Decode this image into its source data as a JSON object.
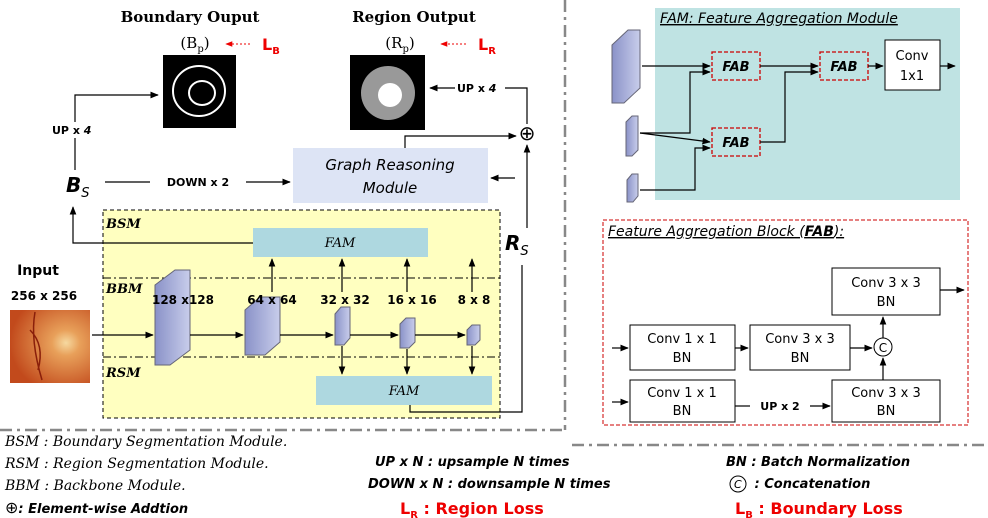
{
  "main": {
    "boundary_output": {
      "title": "Boundary Ouput",
      "label": "B",
      "label_sub": "p",
      "loss": "L",
      "loss_sub": "B"
    },
    "region_output": {
      "title": "Region Output",
      "label": "R",
      "label_sub": "p",
      "loss": "L",
      "loss_sub": "R"
    },
    "up_boundary": {
      "text": "UP x ",
      "factor": "4"
    },
    "up_region": {
      "text": "UP x ",
      "factor": "4"
    },
    "bs": {
      "symbol": "B",
      "sub": "S"
    },
    "rs": {
      "symbol": "R",
      "sub": "S"
    },
    "down": "DOWN x 2",
    "graph": [
      "Graph Reasoning",
      "Module"
    ],
    "plus": "⊕",
    "bsm": "BSM",
    "bbm": "BBM",
    "rsm": "RSM",
    "fam_top": "FAM",
    "fam_bottom": "FAM",
    "input": [
      "Input",
      "256 x 256"
    ],
    "sizes": [
      "128 x128",
      "64 x 64",
      "32 x 32",
      "16 x 16",
      "8 x 8"
    ]
  },
  "fam_module": {
    "title": "FAM: Feature Aggregation Module",
    "fab": [
      "FAB",
      "FAB",
      "FAB"
    ],
    "conv": [
      "Conv",
      "1x1"
    ]
  },
  "fab_block": {
    "title_prefix": "Feature Aggregation Block (",
    "title_bold": "FAB",
    "title_suffix": "):",
    "blocks": [
      [
        "Conv 3 x 3",
        "BN"
      ],
      [
        "Conv 1 x 1",
        "BN"
      ],
      [
        "Conv 3 x 3",
        "BN"
      ],
      [
        "Conv 1 x 1",
        "BN"
      ],
      [
        "Conv 3 x 3",
        "BN"
      ]
    ],
    "up": "UP x 2",
    "concat": "C"
  },
  "legend": {
    "bsm": "BSM : Boundary Segmentation Module.",
    "rsm": "RSM : Region Segmentation Module.",
    "bbm": "BBM : Backbone Module.",
    "add_symbol": "⊕",
    "add": ": Element-wise Addtion",
    "up": "UP x N : upsample N times",
    "down": "DOWN x N : downsample N times",
    "lr": {
      "symbol": "L",
      "sub": "R",
      "text": " : Region Loss"
    },
    "bn": "BN  : Batch Normalization",
    "concat_symbol": "C",
    "concat": " : Concatenation",
    "lb": {
      "symbol": "L",
      "sub": "B",
      "text": " : Boundary Loss"
    }
  }
}
